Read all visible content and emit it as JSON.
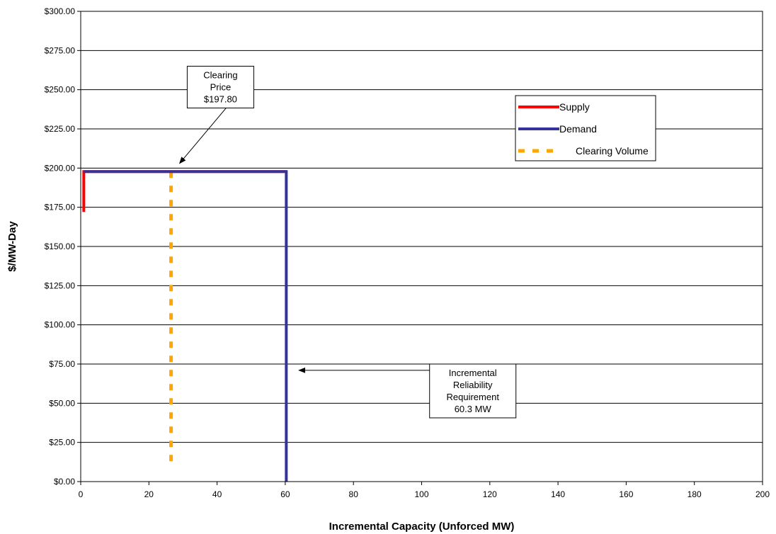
{
  "chart_data": {
    "type": "line",
    "title": "",
    "xlabel": "Incremental Capacity (Unforced MW)",
    "ylabel": "$/MW-Day",
    "xlim": [
      0,
      200
    ],
    "ylim": [
      0,
      300
    ],
    "x_ticks": [
      "0",
      "20",
      "40",
      "60",
      "80",
      "100",
      "120",
      "140",
      "160",
      "180",
      "200"
    ],
    "y_ticks": [
      "$0.00",
      "$25.00",
      "$50.00",
      "$75.00",
      "$100.00",
      "$125.00",
      "$150.00",
      "$175.00",
      "$200.00",
      "$225.00",
      "$250.00",
      "$275.00",
      "$300.00"
    ],
    "grid": "horizontal",
    "legend_position": "top-right",
    "series": [
      {
        "name": "Supply",
        "color": "#ff0000",
        "style": "solid",
        "points": [
          [
            0.9,
            172
          ],
          [
            0.9,
            197.8
          ],
          [
            60.3,
            197.8
          ]
        ]
      },
      {
        "name": "Demand",
        "color": "#333399",
        "style": "solid",
        "points": [
          [
            0.9,
            197.8
          ],
          [
            60.3,
            197.8
          ],
          [
            60.3,
            0
          ]
        ]
      },
      {
        "name": "Clearing Volume",
        "color": "#ffa500",
        "style": "dashed",
        "points": [
          [
            26.5,
            197.8
          ],
          [
            26.5,
            8
          ]
        ]
      }
    ],
    "annotations": [
      {
        "lines": [
          "Clearing",
          "Price",
          "$197.80"
        ],
        "box_x": 41,
        "box_y": 265,
        "arrow_to": [
          29,
          203
        ]
      },
      {
        "lines": [
          "Incremental",
          "Reliability",
          "Requirement",
          "60.3 MW"
        ],
        "box_x": 115,
        "box_y": 75,
        "arrow_to": [
          64,
          71
        ]
      }
    ]
  }
}
